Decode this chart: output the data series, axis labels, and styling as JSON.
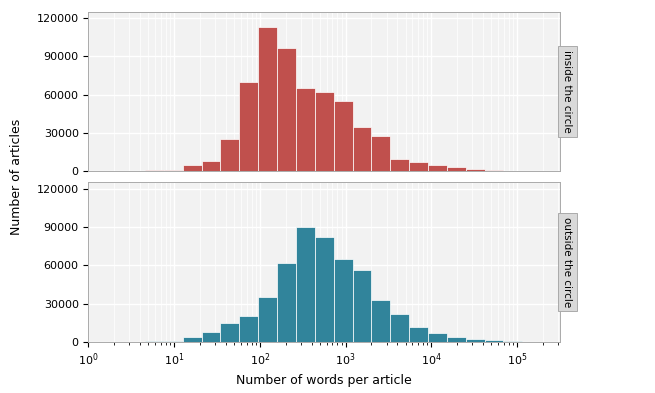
{
  "inside_heights": [
    200,
    300,
    500,
    800,
    1200,
    5000,
    8000,
    25000,
    70000,
    113000,
    97000,
    65000,
    62000,
    55000,
    35000,
    28000,
    10000,
    7500,
    5000,
    3000,
    1500,
    800,
    300,
    100,
    50
  ],
  "outside_heights": [
    100,
    200,
    300,
    500,
    800,
    4000,
    8000,
    15000,
    20000,
    35000,
    62000,
    90000,
    82000,
    65000,
    56000,
    33000,
    22000,
    12000,
    7000,
    4000,
    2500,
    1500,
    700,
    200,
    50
  ],
  "inside_color": "#c0504d",
  "outside_color": "#31849b",
  "ylabel": "Number of articles",
  "xlabel": "Number of words per article",
  "inside_label": "inside the circle",
  "outside_label": "outside the circle",
  "ylim": [
    0,
    125000
  ],
  "yticks": [
    0,
    30000,
    60000,
    90000,
    120000
  ],
  "background_color": "#f2f2f2",
  "grid_color": "#ffffff",
  "label_bg_color": "#d9d9d9",
  "log_min": 0,
  "log_max": 5.5,
  "n_bins": 25
}
